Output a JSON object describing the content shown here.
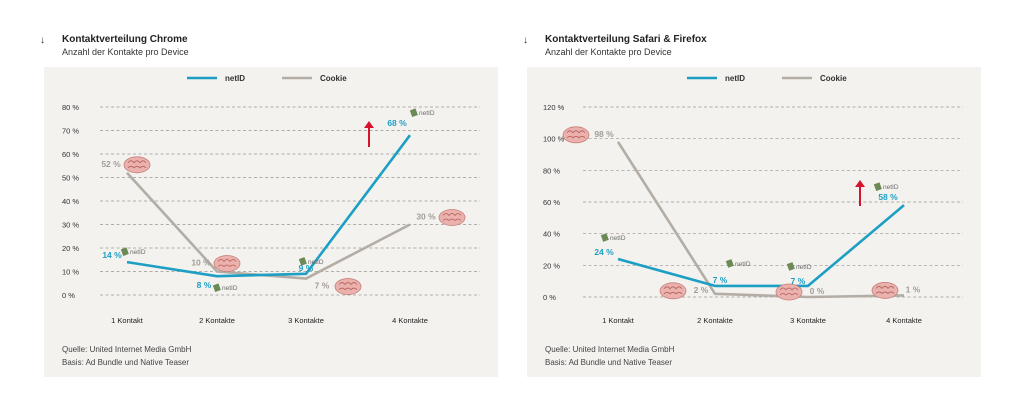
{
  "chart_data": [
    {
      "type": "line",
      "title": "Kontaktverteilung Chrome",
      "subtitle": "Anzahl der Kontakte pro Device",
      "categories": [
        "1 Kontakt",
        "2 Kontakte",
        "3 Kontakte",
        "4 Kontakte"
      ],
      "y_ticks": [
        "80 %",
        "70 %",
        "60 %",
        "50 %",
        "40 %",
        "30 %",
        "20 %",
        "10 %",
        "0 %"
      ],
      "ylim": [
        0,
        80
      ],
      "grid": true,
      "legend_position": "top",
      "series": [
        {
          "name": "netID",
          "values": [
            14,
            8,
            9,
            68
          ],
          "labels": [
            "14 %",
            "8 %",
            "9 %",
            "68 %"
          ],
          "color": "#1d9fc4"
        },
        {
          "name": "Cookie",
          "values": [
            52,
            10,
            7,
            30
          ],
          "labels": [
            "52 %",
            "10 %",
            "7 %",
            "30 %"
          ],
          "color": "#b3ada6"
        }
      ],
      "annotations": {
        "arrow_color": "#d8132c",
        "netid_tag": "netID"
      },
      "source": "Quelle: United Internet Media GmbH",
      "basis": "Basis: Ad Bundle und Native Teaser"
    },
    {
      "type": "line",
      "title": "Kontaktverteilung Safari & Firefox",
      "subtitle": "Anzahl der Kontakte pro Device",
      "categories": [
        "1 Kontakt",
        "2 Kontakte",
        "3 Kontakte",
        "4 Kontakte"
      ],
      "y_ticks": [
        "120 %",
        "100 %",
        "80 %",
        "60 %",
        "40 %",
        "20 %",
        "0 %"
      ],
      "ylim": [
        0,
        120
      ],
      "grid": true,
      "legend_position": "top",
      "series": [
        {
          "name": "netID",
          "values": [
            24,
            7,
            7,
            58
          ],
          "labels": [
            "24 %",
            "7 %",
            "7 %",
            "58 %"
          ],
          "color": "#1d9fc4"
        },
        {
          "name": "Cookie",
          "values": [
            98,
            2,
            0,
            1
          ],
          "labels": [
            "98 %",
            "2 %",
            "0 %",
            "1 %"
          ],
          "color": "#b3ada6"
        }
      ],
      "annotations": {
        "arrow_color": "#d8132c",
        "netid_tag": "netID"
      },
      "source": "Quelle: United Internet Media GmbH",
      "basis": "Basis: Ad Bundle und Native Teaser"
    }
  ]
}
